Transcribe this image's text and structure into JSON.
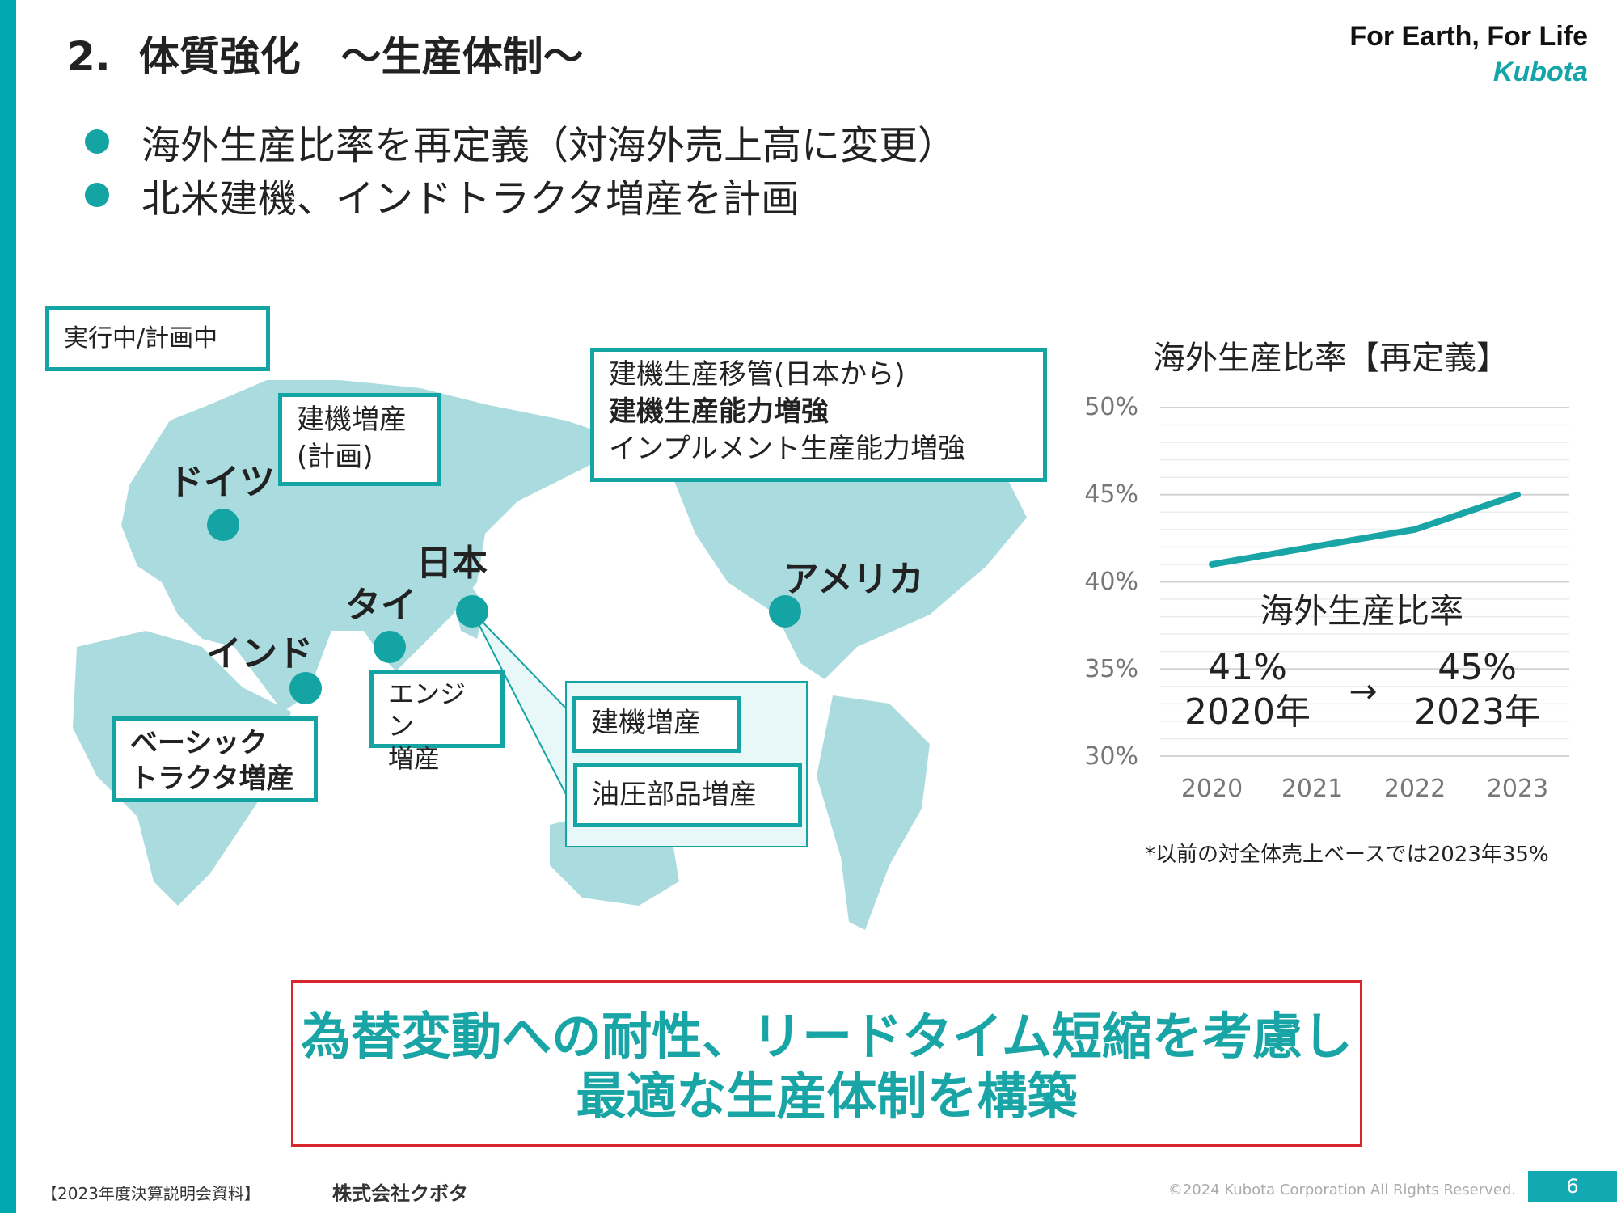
{
  "header": {
    "title": "2.  体質強化　～生産体制～",
    "brand_tagline": "For Earth, For Life",
    "brand_logo": "Kubota"
  },
  "bullets": [
    "海外生産比率を再定義（対海外売上高に変更）",
    "北米建機、インドトラクタ増産を計画"
  ],
  "map": {
    "legend_box": "実行中/計画中",
    "germany_box": [
      "建機増産",
      "(計画)"
    ],
    "japan_box": [
      "建機生産移管(日本から)",
      "建機生産能力増強",
      "インプルメント生産能力増強"
    ],
    "locations": {
      "germany": "ドイツ",
      "japan": "日本",
      "thailand": "タイ",
      "india": "インド",
      "usa": "アメリカ"
    },
    "india_box": [
      "ベーシック",
      "トラクタ増産"
    ],
    "thailand_box": [
      "エンジン",
      "増産"
    ],
    "usa_boxes": [
      "建機増産",
      "油圧部品増産"
    ]
  },
  "chart_data": {
    "type": "line",
    "title": "海外生産比率【再定義】",
    "categories": [
      "2020",
      "2021",
      "2022",
      "2023"
    ],
    "series": [
      {
        "name": "海外生産比率",
        "values": [
          41,
          42,
          43,
          45
        ]
      }
    ],
    "yticks": [
      "50%",
      "45%",
      "40%",
      "35%",
      "30%"
    ],
    "ylim": [
      30,
      50
    ],
    "grid": true,
    "annotation": {
      "series_label": "海外生産比率",
      "from_value": "41%",
      "from_year": "2020年",
      "arrow": "→",
      "to_value": "45%",
      "to_year": "2023年"
    },
    "footnote": "*以前の対全体売上ベースでは2023年35%",
    "color": "#19a5a6"
  },
  "conclusion": [
    "為替変動への耐性、リードタイム短縮を考慮し",
    "最適な生産体制を構築"
  ],
  "footer": {
    "doc": "【2023年度決算説明会資料】",
    "company": "株式会社クボタ",
    "copyright": "©2024 Kubota Corporation All Rights Reserved.",
    "page": "6"
  }
}
